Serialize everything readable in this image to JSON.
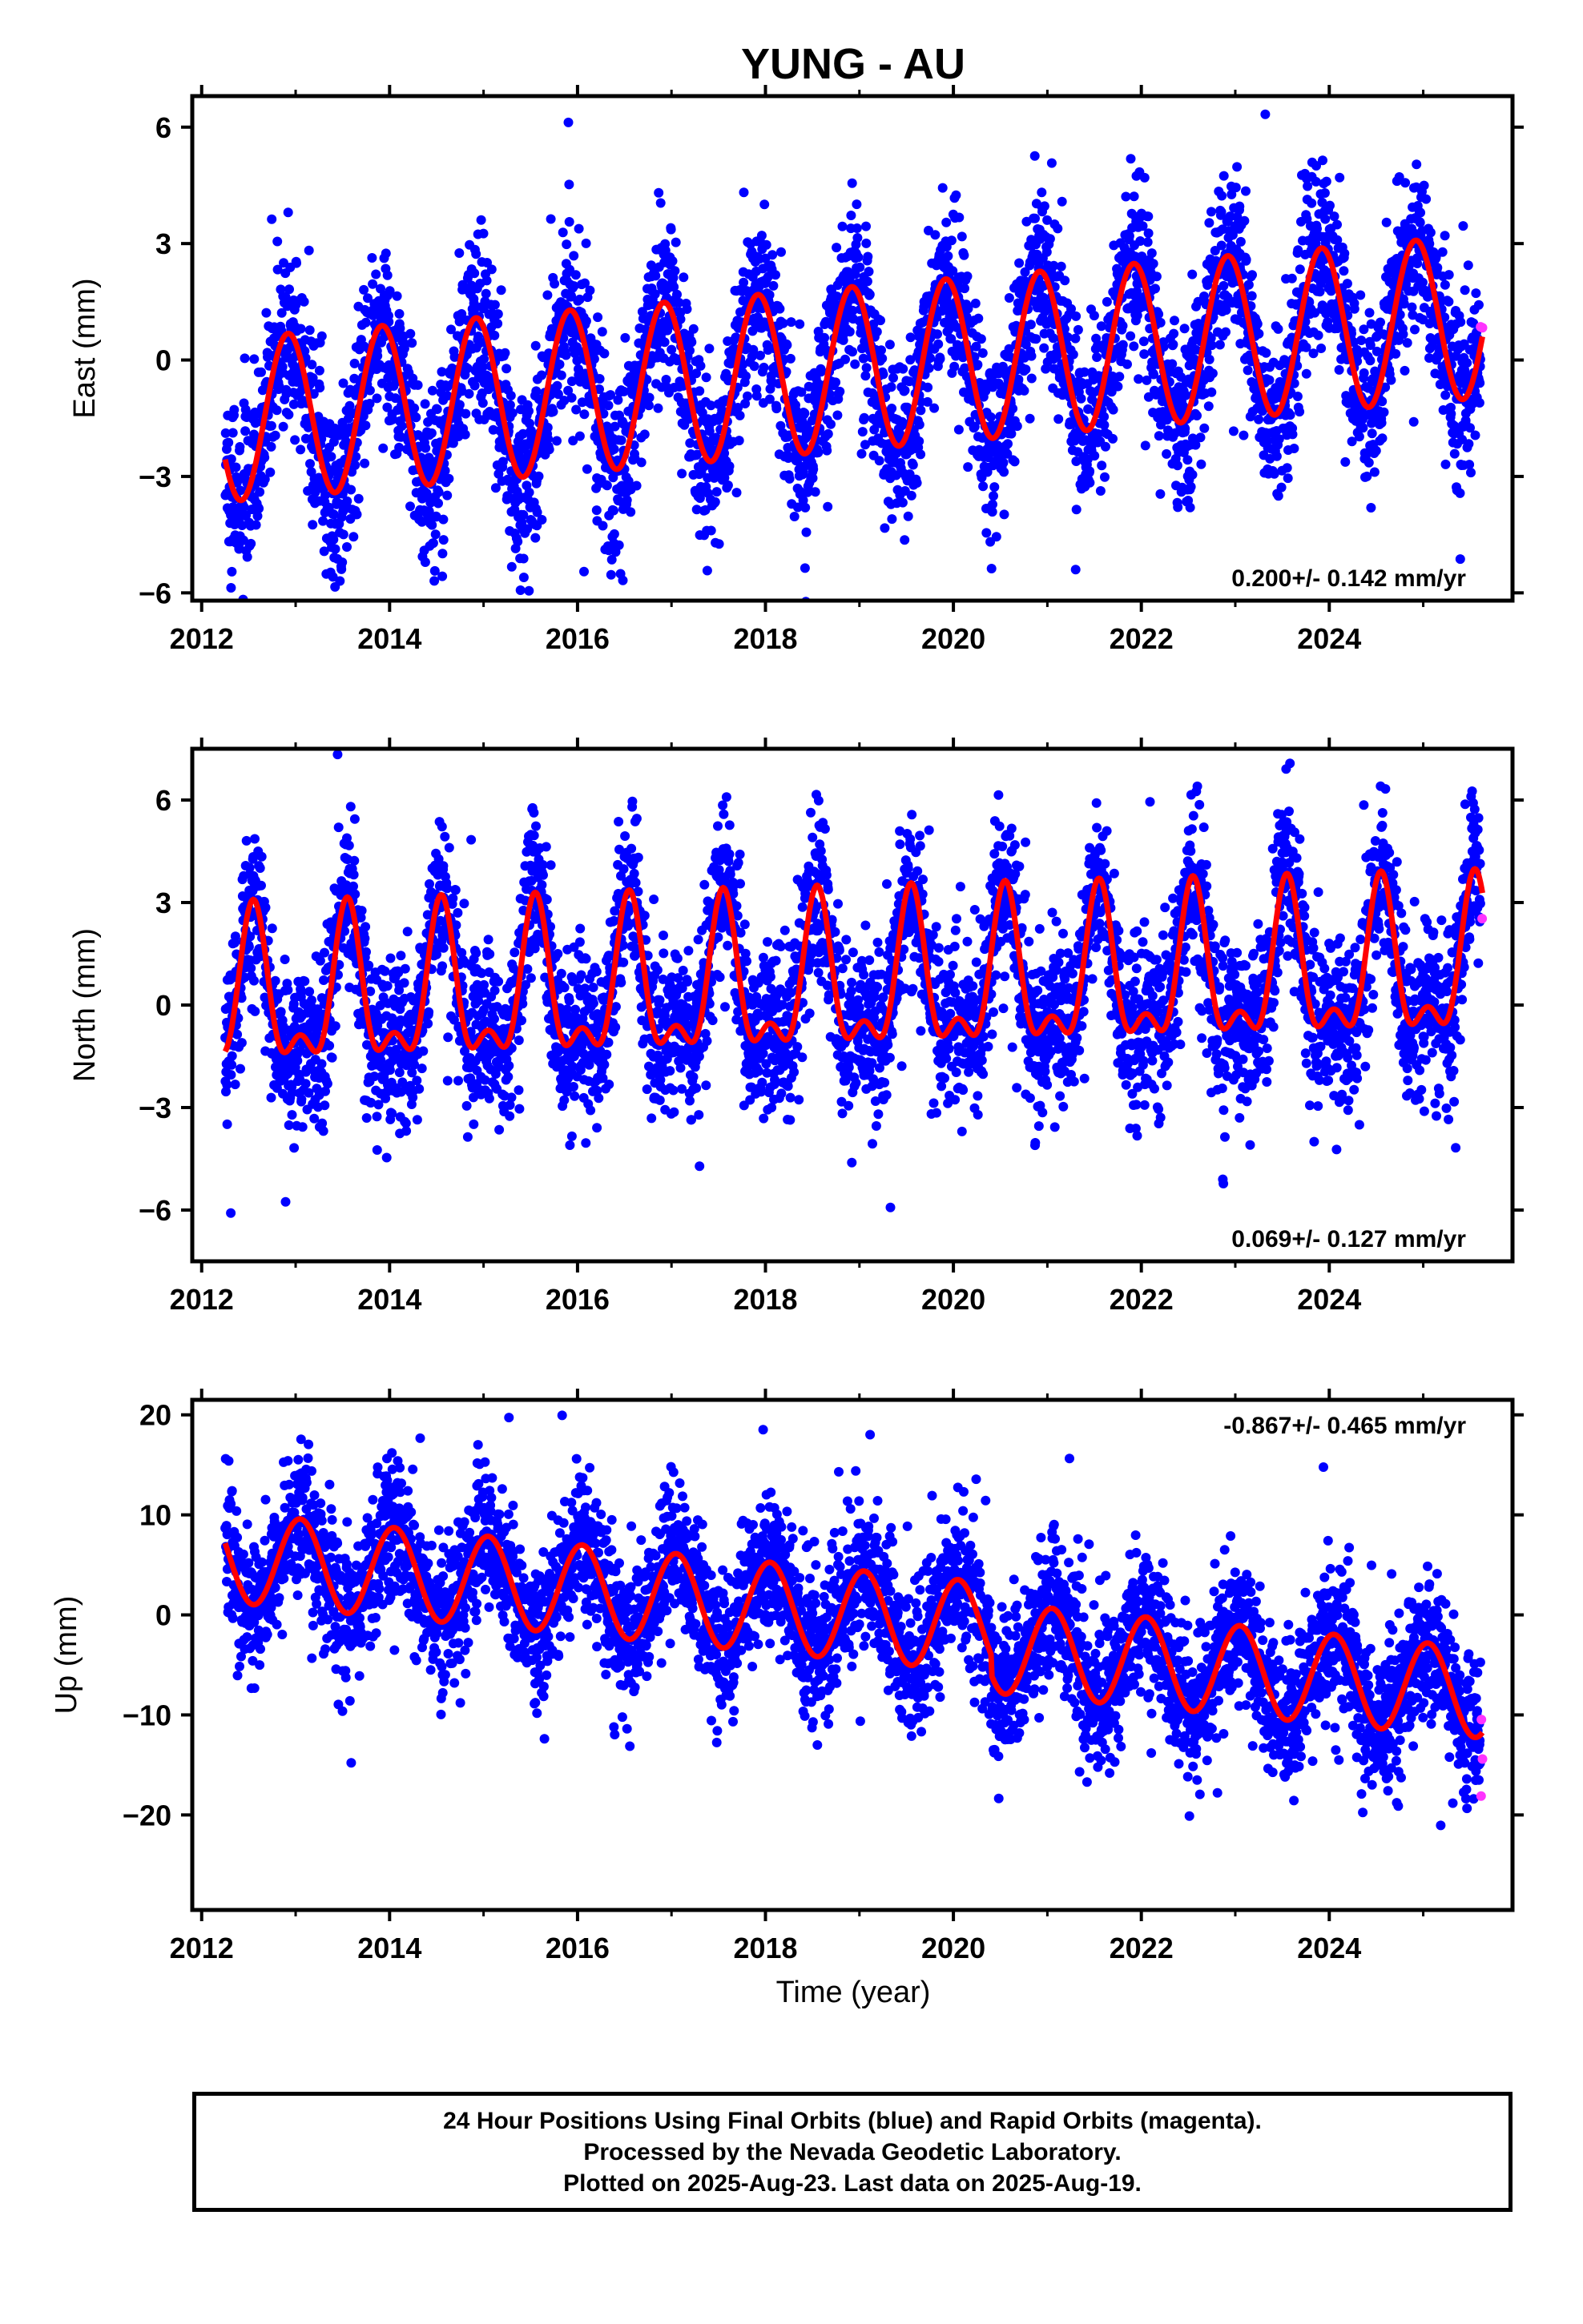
{
  "chart_data": {
    "title": "YUNG - AU",
    "type": "scatter",
    "xlabel": "Time (year)",
    "xlim": [
      2011.9,
      2025.95
    ],
    "x_ticks": [
      "2012",
      "2014",
      "2016",
      "2018",
      "2020",
      "2022",
      "2024"
    ],
    "data_start": 2012.25,
    "data_end": 2025.63,
    "rapid_start": 2025.5,
    "colors": {
      "final_orbits": "#0000ff",
      "rapid_orbits": "#ff33ff",
      "model_fit": "#ff0000"
    },
    "panels": [
      {
        "id": "east",
        "ylabel": "East (mm)",
        "ylim": [
          -6.2,
          6.8
        ],
        "y_ticks": [
          6,
          3,
          0,
          -3,
          -6
        ],
        "y_tick_labels": [
          "6",
          "3",
          "0",
          "−3",
          "−6"
        ],
        "rate_label": "0.200+/- 0.142 mm/yr",
        "model": {
          "offset_2012": -1.6,
          "trend": 0.2,
          "annual_amp": 2.1,
          "annual_peak": 0.92,
          "semiannual_amp": 0.0,
          "semiannual_peak": 0.0,
          "step": 0.0,
          "step_year": 2020.5,
          "scatter": 1.1
        }
      },
      {
        "id": "north",
        "ylabel": "North (mm)",
        "ylim": [
          -7.5,
          7.5
        ],
        "y_ticks": [
          6,
          3,
          0,
          -3,
          -6
        ],
        "y_tick_labels": [
          "6",
          "3",
          "0",
          "−3",
          "−6"
        ],
        "rate_label": "0.069+/- 0.127 mm/yr",
        "model": {
          "offset_2012": 0.05,
          "trend": 0.069,
          "annual_amp": 2.0,
          "annual_peak": 0.55,
          "semiannual_amp": 1.0,
          "semiannual_peak": 0.05,
          "step": 0.0,
          "step_year": 2020.5,
          "scatter": 1.2
        }
      },
      {
        "id": "up",
        "ylabel": "Up (mm)",
        "ylim": [
          -29.5,
          21.5
        ],
        "y_ticks": [
          20,
          10,
          0,
          -10,
          -20
        ],
        "y_tick_labels": [
          "20",
          "10",
          "0",
          "−10",
          "−20"
        ],
        "rate_label": "-0.867+/- 0.465 mm/yr",
        "model": {
          "offset_2012": 6.0,
          "trend": -0.867,
          "annual_amp": 4.5,
          "annual_peak": 0.05,
          "semiannual_amp": 0.0,
          "semiannual_peak": 0.0,
          "step": -2.0,
          "step_year": 2020.4,
          "scatter": 3.5
        }
      }
    ]
  },
  "footer": {
    "line1": "24 Hour Positions Using Final Orbits (blue) and Rapid Orbits (magenta).",
    "line2": "Processed by the Nevada Geodetic Laboratory.",
    "line3": "Plotted on 2025-Aug-23. Last data on 2025-Aug-19."
  }
}
